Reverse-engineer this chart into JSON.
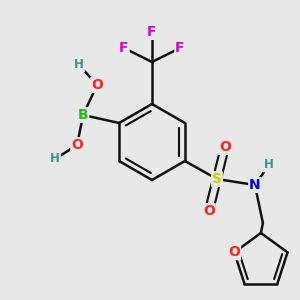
{
  "bg_color": "#e8e8e8",
  "atom_colors": {
    "B": "#22bb22",
    "O": "#ff2020",
    "F": "#dd00dd",
    "S": "#cccc00",
    "N": "#0000ee",
    "H": "#409090",
    "C": "#000000"
  },
  "bond_color": "#111111",
  "bond_width": 1.8,
  "font_size_atoms": 10,
  "font_size_small": 8.5
}
